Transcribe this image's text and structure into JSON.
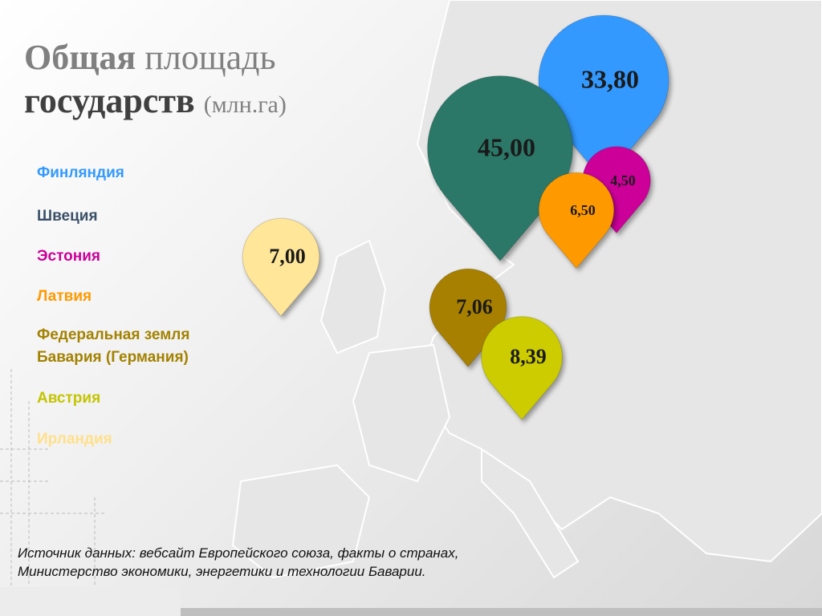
{
  "chart_data": {
    "type": "pin",
    "title_words": [
      "Общая",
      "площадь",
      "государств",
      "(млн.га)"
    ],
    "categories": [
      "Финляндия",
      "Швеция",
      "Эстония",
      "Латвия",
      "Федеральная земля Бавария (Германия)",
      "Австрия",
      "Ирландия"
    ],
    "values": [
      33.8,
      45,
      4.5,
      6.5,
      7.06,
      8.39,
      7
    ],
    "value_labels": [
      "33,80",
      "45,00",
      "4,50",
      "6,50",
      "7,06",
      "8,39",
      "7,00"
    ],
    "colors": [
      "#3399ff",
      "#2b7868",
      "#cc0099",
      "#ff9900",
      "#a88000",
      "#cccc00",
      "#ffe699"
    ],
    "source": [
      "Источник данных: вебсайт Европейского союза, факты о странах,",
      "Министерство экономики, энергетики и технологии Баварии."
    ]
  }
}
